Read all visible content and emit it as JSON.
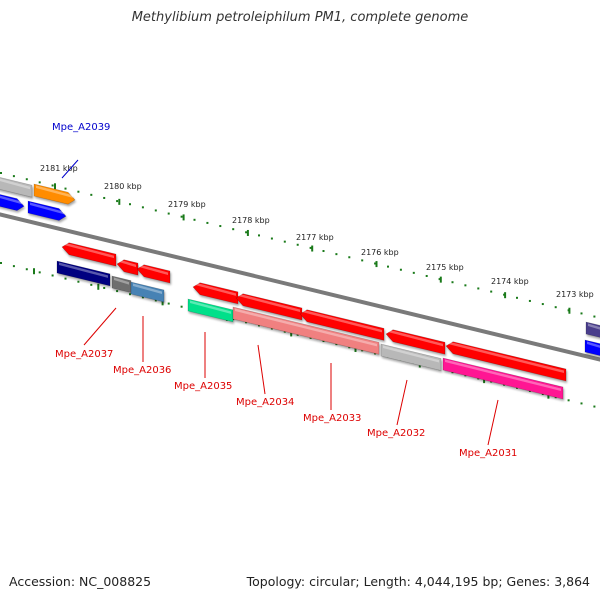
{
  "title": "Methylibium petroleiphilum PM1, complete genome",
  "footer": {
    "accession": "Accession: NC_008825",
    "summary": "Topology: circular; Length: 4,044,195 bp; Genes: 3,864"
  },
  "ruler": {
    "tick_labels": [
      "2181 kbp",
      "2180 kbp",
      "2179 kbp",
      "2178 kbp",
      "2177 kbp",
      "2176 kbp",
      "2175 kbp",
      "2174 kbp",
      "2173 kbp"
    ]
  },
  "gene_labels": [
    {
      "id": "g2039",
      "text": "Mpe_A2039",
      "color": "#0000cc"
    },
    {
      "id": "g2037",
      "text": "Mpe_A2037",
      "color": "#dd0000"
    },
    {
      "id": "g2036",
      "text": "Mpe_A2036",
      "color": "#dd0000"
    },
    {
      "id": "g2035",
      "text": "Mpe_A2035",
      "color": "#dd0000"
    },
    {
      "id": "g2034",
      "text": "Mpe_A2034",
      "color": "#dd0000"
    },
    {
      "id": "g2033",
      "text": "Mpe_A2033",
      "color": "#dd0000"
    },
    {
      "id": "g2032",
      "text": "Mpe_A2032",
      "color": "#dd0000"
    },
    {
      "id": "g2031",
      "text": "Mpe_A2031",
      "color": "#dd0000"
    }
  ],
  "colors": {
    "backbone": "#7a7a7a",
    "tick": "#1a7a1a",
    "red": "#ff0000",
    "orange": "#ff8c00",
    "blue": "#0000ff",
    "navy": "#000080",
    "gray": "#b8b8b8",
    "dark_gray": "#6e6e6e",
    "steel_blue": "#4682b4",
    "spring_green": "#00e08a",
    "light_coral": "#f08080",
    "deep_pink": "#ff1493",
    "slate_blue": "#483d8b"
  }
}
